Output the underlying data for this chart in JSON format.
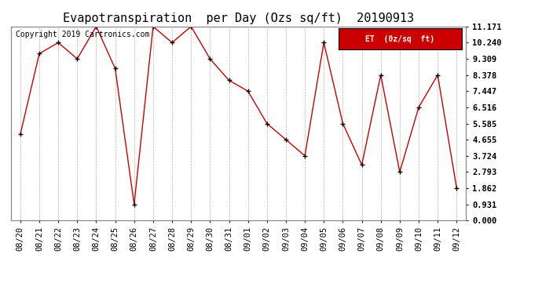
{
  "title": "Evapotranspiration  per Day (Ozs sq/ft)  20190913",
  "copyright_text": "Copyright 2019 Cartronics.com",
  "legend_label": "ET  (0z/sq  ft)",
  "x_labels": [
    "08/20",
    "08/21",
    "08/22",
    "08/23",
    "08/24",
    "08/25",
    "08/26",
    "08/27",
    "08/28",
    "08/29",
    "08/30",
    "08/31",
    "09/01",
    "09/02",
    "09/03",
    "09/04",
    "09/05",
    "09/06",
    "09/07",
    "09/08",
    "09/09",
    "09/10",
    "09/11",
    "09/12"
  ],
  "y_values": [
    4.966,
    9.61,
    10.24,
    9.309,
    11.171,
    8.75,
    0.931,
    11.171,
    10.24,
    11.171,
    9.309,
    8.068,
    7.447,
    5.585,
    4.655,
    3.724,
    10.24,
    5.585,
    3.2,
    8.378,
    2.793,
    6.516,
    8.378,
    1.862
  ],
  "y_ticks": [
    0.0,
    0.931,
    1.862,
    2.793,
    3.724,
    4.655,
    5.585,
    6.516,
    7.447,
    8.378,
    9.309,
    10.24,
    11.171
  ],
  "y_min": 0.0,
  "y_max": 11.171,
  "line_color": "#cc0000",
  "marker_color": "#000000",
  "bg_color": "#ffffff",
  "grid_color": "#b0b0b0",
  "legend_bg": "#cc0000",
  "legend_text_color": "#ffffff",
  "title_fontsize": 11,
  "tick_fontsize": 7.5,
  "copyright_fontsize": 7
}
